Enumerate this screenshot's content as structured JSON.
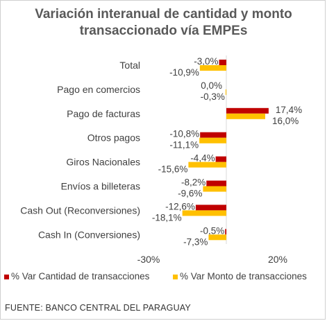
{
  "chart_data": {
    "type": "bar",
    "orientation": "horizontal",
    "title": "Variación interanual de cantidad y monto transaccionado vía EMPEs",
    "categories": [
      "Total",
      "Pago en comercios",
      "Pago de facturas",
      "Otros pagos",
      "Giros Nacionales",
      "Envíos a billeteras",
      "Cash Out (Reconversiones)",
      "Cash In (Conversiones)"
    ],
    "series": [
      {
        "name": "% Var Cantidad de transacciones",
        "color": "#c00000",
        "values": [
          -3.0,
          0.0,
          17.4,
          -10.8,
          -4.4,
          -8.2,
          -12.6,
          -0.5
        ],
        "labels": [
          "-3,0%",
          "0,0%",
          "17,4%",
          "-10,8%",
          "-4,4%",
          "-8,2%",
          "-12,6%",
          "-0,5%"
        ]
      },
      {
        "name": "% Var Monto de transacciones",
        "color": "#ffc000",
        "values": [
          -10.9,
          -0.3,
          16.0,
          -11.1,
          -15.6,
          -9.6,
          -18.1,
          -7.3
        ],
        "labels": [
          "-10,9%",
          "-0,3%",
          "16,0%",
          "-11,1%",
          "-15,6%",
          "-9,6%",
          "-18,1%",
          "-7,3%"
        ]
      }
    ],
    "xlim": [
      -30,
      20
    ],
    "ticks": [
      "-30%",
      "20%"
    ],
    "legend_position": "bottom",
    "grid": false
  },
  "source": "FUENTE: BANCO CENTRAL DEL PARAGUAY"
}
